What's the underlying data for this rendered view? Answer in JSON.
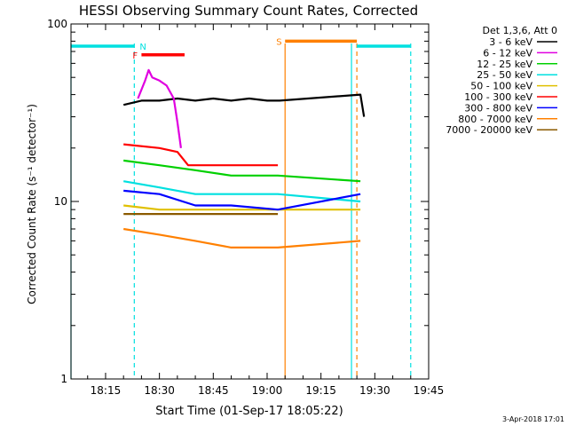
{
  "chart_data": {
    "type": "line",
    "title": "HESSI Observing Summary Count Rates, Corrected",
    "xlabel": "Start Time (01-Sep-17 18:05:22)",
    "ylabel": "Corrected Count Rate (s⁻¹ detector⁻¹)",
    "yscale": "log",
    "ylim": [
      1,
      100
    ],
    "xlim": [
      "18:05:22",
      "19:45:00"
    ],
    "x_ticks": [
      "18:15",
      "18:30",
      "18:45",
      "19:00",
      "19:15",
      "19:30",
      "19:45"
    ],
    "y_ticks": [
      "1",
      "10",
      "100"
    ],
    "legend_title": "Det 1,3,6, Att 0",
    "legend_position": "right",
    "footer": "3-Apr-2018 17:01",
    "series": [
      {
        "name": "3 - 6 keV",
        "color": "#000000",
        "x": [
          "18:20",
          "18:25",
          "18:30",
          "18:35",
          "18:40",
          "18:45",
          "18:50",
          "18:55",
          "19:00",
          "19:03:30",
          "19:26",
          "19:27"
        ],
        "values": [
          35,
          37,
          37,
          38,
          37,
          38,
          37,
          38,
          37,
          37,
          40,
          30
        ]
      },
      {
        "name": "6 - 12 keV",
        "color": "#e000e0",
        "x": [
          "18:24",
          "18:26",
          "18:27",
          "18:28",
          "18:30",
          "18:32",
          "18:34",
          "18:35",
          "18:36"
        ],
        "values": [
          38,
          48,
          55,
          50,
          48,
          45,
          38,
          28,
          20
        ]
      },
      {
        "name": "12 - 25 keV",
        "color": "#00d000",
        "x": [
          "18:20",
          "18:30",
          "18:40",
          "18:50",
          "19:03",
          "19:26"
        ],
        "values": [
          17,
          16,
          15,
          14,
          14,
          13
        ]
      },
      {
        "name": "25 - 50 keV",
        "color": "#00e0e0",
        "x": [
          "18:20",
          "18:30",
          "18:40",
          "18:50",
          "19:03",
          "19:26"
        ],
        "values": [
          13,
          12,
          11,
          11,
          11,
          10
        ]
      },
      {
        "name": "50 - 100 keV",
        "color": "#e0c000",
        "x": [
          "18:20",
          "18:30",
          "18:40",
          "18:50",
          "19:03",
          "19:26"
        ],
        "values": [
          9.5,
          9,
          9,
          9,
          9,
          9
        ]
      },
      {
        "name": "100 - 300 keV",
        "color": "#ff0000",
        "x": [
          "18:20",
          "18:30",
          "18:35",
          "18:38",
          "18:45",
          "18:50",
          "19:03"
        ],
        "values": [
          21,
          20,
          19,
          16,
          16,
          16,
          16
        ]
      },
      {
        "name": "300 - 800 keV",
        "color": "#0000ff",
        "x": [
          "18:20",
          "18:30",
          "18:40",
          "18:50",
          "19:03",
          "19:26"
        ],
        "values": [
          11.5,
          11,
          9.5,
          9.5,
          9,
          11
        ]
      },
      {
        "name": "800 - 7000 keV",
        "color": "#ff8000",
        "x": [
          "18:20",
          "18:30",
          "18:40",
          "18:50",
          "19:03",
          "19:26"
        ],
        "values": [
          7,
          6.5,
          6,
          5.5,
          5.5,
          6
        ]
      },
      {
        "name": "7000 - 20000 keV",
        "color": "#8b5a00",
        "x": [
          "18:20",
          "18:30",
          "18:40",
          "18:50",
          "19:03"
        ],
        "values": [
          8.5,
          8.5,
          8.5,
          8.5,
          8.5
        ]
      }
    ],
    "flag_bars": [
      {
        "label": "",
        "color": "#00e0e0",
        "x": [
          "18:05:22",
          "18:23"
        ],
        "y": 75
      },
      {
        "label": "N",
        "color": "#00e0e0",
        "x": [
          "18:23",
          "18:23"
        ],
        "y": 75
      },
      {
        "label": "F",
        "color": "#ff0000",
        "x": [
          "18:25",
          "18:37"
        ],
        "y": 67
      },
      {
        "label": "S",
        "color": "#ff8000",
        "x": [
          "19:05",
          "19:25"
        ],
        "y": 80
      },
      {
        "label": "",
        "color": "#00e0e0",
        "x": [
          "19:25",
          "19:40"
        ],
        "y": 75
      }
    ],
    "vertical_lines": [
      {
        "x": "18:05:22",
        "color": "#00e0e0",
        "style": "solid"
      },
      {
        "x": "18:23",
        "color": "#00e0e0",
        "style": "dashed"
      },
      {
        "x": "19:05",
        "color": "#ff8000",
        "style": "solid"
      },
      {
        "x": "19:23:30",
        "color": "#00e0e0",
        "style": "solid"
      },
      {
        "x": "19:25",
        "color": "#ff8000",
        "style": "dashed"
      },
      {
        "x": "19:40",
        "color": "#00e0e0",
        "style": "dashed"
      }
    ]
  }
}
